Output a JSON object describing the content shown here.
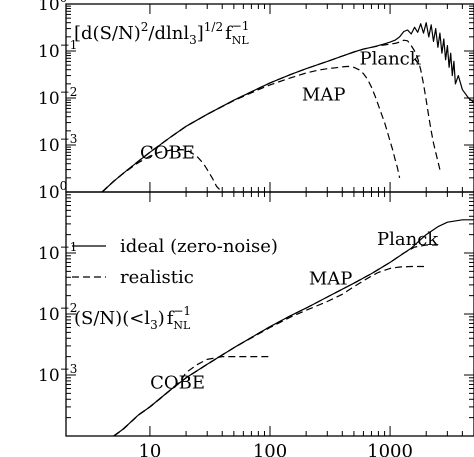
{
  "chart_data": [
    {
      "type": "line",
      "title": "[d(S/N)²/dlnl₃]^{1/2} f_NL^{-1}",
      "title_parts": {
        "main": "[d(S/N)",
        "sup1": "2",
        "mid": "/dlnl",
        "sub1": "3",
        "close": "]",
        "sup2": "1/2",
        "f": "f",
        "sub2": "NL",
        "sup3": "−1"
      },
      "x_scale": "log",
      "y_scale": "log",
      "xlim": [
        2,
        5000
      ],
      "ylim": [
        0.0001,
        1
      ],
      "yticks": [
        {
          "value": 1,
          "base": "10",
          "exp": "0"
        },
        {
          "value": 0.1,
          "base": "10",
          "exp": "−1"
        },
        {
          "value": 0.01,
          "base": "10",
          "exp": "−2"
        },
        {
          "value": 0.001,
          "base": "10",
          "exp": "−3"
        }
      ],
      "curve_labels": [
        {
          "text": "Planck",
          "x": 1000,
          "y": 0.07
        },
        {
          "text": "MAP",
          "x": 280,
          "y": 0.012
        },
        {
          "text": "COBE",
          "x": 14,
          "y": 0.0007
        }
      ],
      "series": [
        {
          "style": "solid",
          "x": [
            4,
            5,
            6,
            8,
            10,
            15,
            20,
            30,
            50,
            80,
            100,
            150,
            200,
            300,
            400,
            500,
            600,
            700,
            800,
            900,
            1000,
            1100,
            1200,
            1300,
            1400,
            1500,
            1600,
            1700,
            1800,
            1900,
            2000,
            2100,
            2200,
            2300,
            2400,
            2500,
            2600,
            2700,
            2800,
            2900,
            3000,
            3100,
            3200,
            3300,
            3400,
            3500,
            3700,
            4000,
            4500,
            5000
          ],
          "y": [
            0.0001,
            0.00017,
            0.00025,
            0.00045,
            0.0007,
            0.0015,
            0.0025,
            0.0045,
            0.009,
            0.016,
            0.021,
            0.032,
            0.042,
            0.06,
            0.078,
            0.095,
            0.11,
            0.12,
            0.13,
            0.142,
            0.155,
            0.17,
            0.2,
            0.26,
            0.28,
            0.23,
            0.32,
            0.25,
            0.38,
            0.24,
            0.4,
            0.2,
            0.36,
            0.16,
            0.3,
            0.12,
            0.24,
            0.09,
            0.18,
            0.065,
            0.13,
            0.045,
            0.09,
            0.03,
            0.06,
            0.02,
            0.03,
            0.015,
            0.01,
            0.008
          ]
        },
        {
          "style": "dashed",
          "name": "Planck",
          "x": [
            4,
            5,
            6,
            8,
            10,
            15,
            20,
            30,
            50,
            80,
            100,
            150,
            200,
            300,
            400,
            500,
            600,
            700,
            800,
            900,
            1000,
            1100,
            1200,
            1300,
            1400,
            1500,
            1600,
            1700,
            1800,
            1900,
            2000,
            2100,
            2200,
            2300,
            2400,
            2500,
            2600
          ],
          "y": [
            0.0001,
            0.00017,
            0.00025,
            0.00045,
            0.0007,
            0.0015,
            0.0025,
            0.0045,
            0.009,
            0.016,
            0.021,
            0.032,
            0.042,
            0.06,
            0.078,
            0.095,
            0.11,
            0.12,
            0.128,
            0.135,
            0.14,
            0.145,
            0.155,
            0.17,
            0.165,
            0.13,
            0.1,
            0.07,
            0.04,
            0.02,
            0.009,
            0.004,
            0.002,
            0.0011,
            0.0007,
            0.00045,
            0.0003
          ]
        },
        {
          "style": "dashed",
          "name": "MAP",
          "x": [
            4,
            5,
            6,
            8,
            10,
            15,
            20,
            30,
            50,
            80,
            100,
            150,
            200,
            250,
            300,
            350,
            400,
            450,
            500,
            550,
            600,
            650,
            700,
            750,
            800,
            850,
            900,
            950,
            1000,
            1050,
            1100,
            1150,
            1200
          ],
          "y": [
            0.0001,
            0.00017,
            0.00025,
            0.00045,
            0.0007,
            0.0015,
            0.0025,
            0.0045,
            0.0088,
            0.015,
            0.019,
            0.027,
            0.034,
            0.039,
            0.042,
            0.044,
            0.046,
            0.047,
            0.045,
            0.04,
            0.033,
            0.025,
            0.017,
            0.011,
            0.007,
            0.0045,
            0.003,
            0.0019,
            0.0012,
            0.0008,
            0.0005,
            0.00033,
            0.0002
          ]
        },
        {
          "style": "dashed",
          "name": "COBE",
          "x": [
            4,
            5,
            6,
            8,
            10,
            12,
            15,
            18,
            20,
            22,
            25,
            28,
            30,
            33,
            36,
            40
          ],
          "y": [
            0.0001,
            0.00017,
            0.00025,
            0.00042,
            0.00058,
            0.0007,
            0.00078,
            0.0008,
            0.00078,
            0.0007,
            0.00055,
            0.0004,
            0.0003,
            0.0002,
            0.00013,
            8e-05
          ]
        }
      ]
    },
    {
      "type": "line",
      "title": "(S/N)(<l₃) f_NL^{-1}",
      "title_parts": {
        "main": "(S/N)(<l",
        "sub1": "3",
        "close": ")",
        "f": "f",
        "sub2": "NL",
        "sup3": "−1"
      },
      "x_scale": "log",
      "y_scale": "log",
      "xlim": [
        2,
        5000
      ],
      "ylim": [
        0.0001,
        1
      ],
      "yticks": [
        {
          "value": 1,
          "base": "10",
          "exp": "0"
        },
        {
          "value": 0.1,
          "base": "10",
          "exp": "−1"
        },
        {
          "value": 0.01,
          "base": "10",
          "exp": "−2"
        },
        {
          "value": 0.001,
          "base": "10",
          "exp": "−3"
        }
      ],
      "xticks": [
        {
          "value": 10,
          "label": "10"
        },
        {
          "value": 100,
          "label": "100"
        },
        {
          "value": 1000,
          "label": "1000"
        }
      ],
      "legend": {
        "placement": "top-left",
        "entries": [
          {
            "style": "solid",
            "label": "ideal (zero-noise)"
          },
          {
            "style": "dashed",
            "label": "realistic"
          }
        ]
      },
      "curve_labels": [
        {
          "text": "Planck",
          "x": 1400,
          "y": 0.17
        },
        {
          "text": "MAP",
          "x": 320,
          "y": 0.038
        },
        {
          "text": "COBE",
          "x": 17,
          "y": 0.00075
        }
      ],
      "series": [
        {
          "style": "solid",
          "x": [
            5,
            6,
            8,
            10,
            15,
            20,
            30,
            50,
            80,
            100,
            150,
            200,
            300,
            500,
            700,
            1000,
            1500,
            2000,
            2500,
            3000,
            4000,
            5000
          ],
          "y": [
            9e-05,
            0.00013,
            0.00022,
            0.0003,
            0.00058,
            0.0009,
            0.0015,
            0.0028,
            0.0048,
            0.0062,
            0.0095,
            0.0125,
            0.019,
            0.032,
            0.046,
            0.07,
            0.12,
            0.2,
            0.27,
            0.32,
            0.35,
            0.35
          ]
        },
        {
          "style": "dashed",
          "name": "Planck",
          "x": [
            5,
            6,
            8,
            10,
            15,
            20,
            30,
            50,
            80,
            100,
            150,
            200,
            300,
            500,
            700,
            1000,
            1300,
            1600,
            2000,
            2500
          ],
          "y": [
            9e-05,
            0.00013,
            0.00022,
            0.0003,
            0.00058,
            0.0009,
            0.0015,
            0.0028,
            0.0048,
            0.0062,
            0.0095,
            0.0125,
            0.019,
            0.032,
            0.046,
            0.07,
            0.1,
            0.125,
            0.135,
            0.135
          ]
        },
        {
          "style": "dashed",
          "name": "MAP",
          "x": [
            5,
            6,
            8,
            10,
            15,
            20,
            30,
            50,
            80,
            100,
            150,
            200,
            300,
            400,
            500,
            600,
            700,
            800,
            1000,
            1200,
            1500,
            2000
          ],
          "y": [
            9e-05,
            0.00013,
            0.00022,
            0.0003,
            0.00058,
            0.0009,
            0.0015,
            0.0028,
            0.0047,
            0.006,
            0.009,
            0.0115,
            0.016,
            0.021,
            0.028,
            0.035,
            0.042,
            0.048,
            0.056,
            0.059,
            0.06,
            0.06
          ]
        },
        {
          "style": "dashed",
          "name": "COBE",
          "x": [
            5,
            6,
            8,
            10,
            12,
            15,
            18,
            20,
            25,
            30,
            40,
            50,
            70,
            100
          ],
          "y": [
            9e-05,
            0.00013,
            0.00022,
            0.0003,
            0.0004,
            0.00058,
            0.0008,
            0.0011,
            0.0015,
            0.0018,
            0.002,
            0.002,
            0.002,
            0.002
          ]
        }
      ]
    }
  ]
}
